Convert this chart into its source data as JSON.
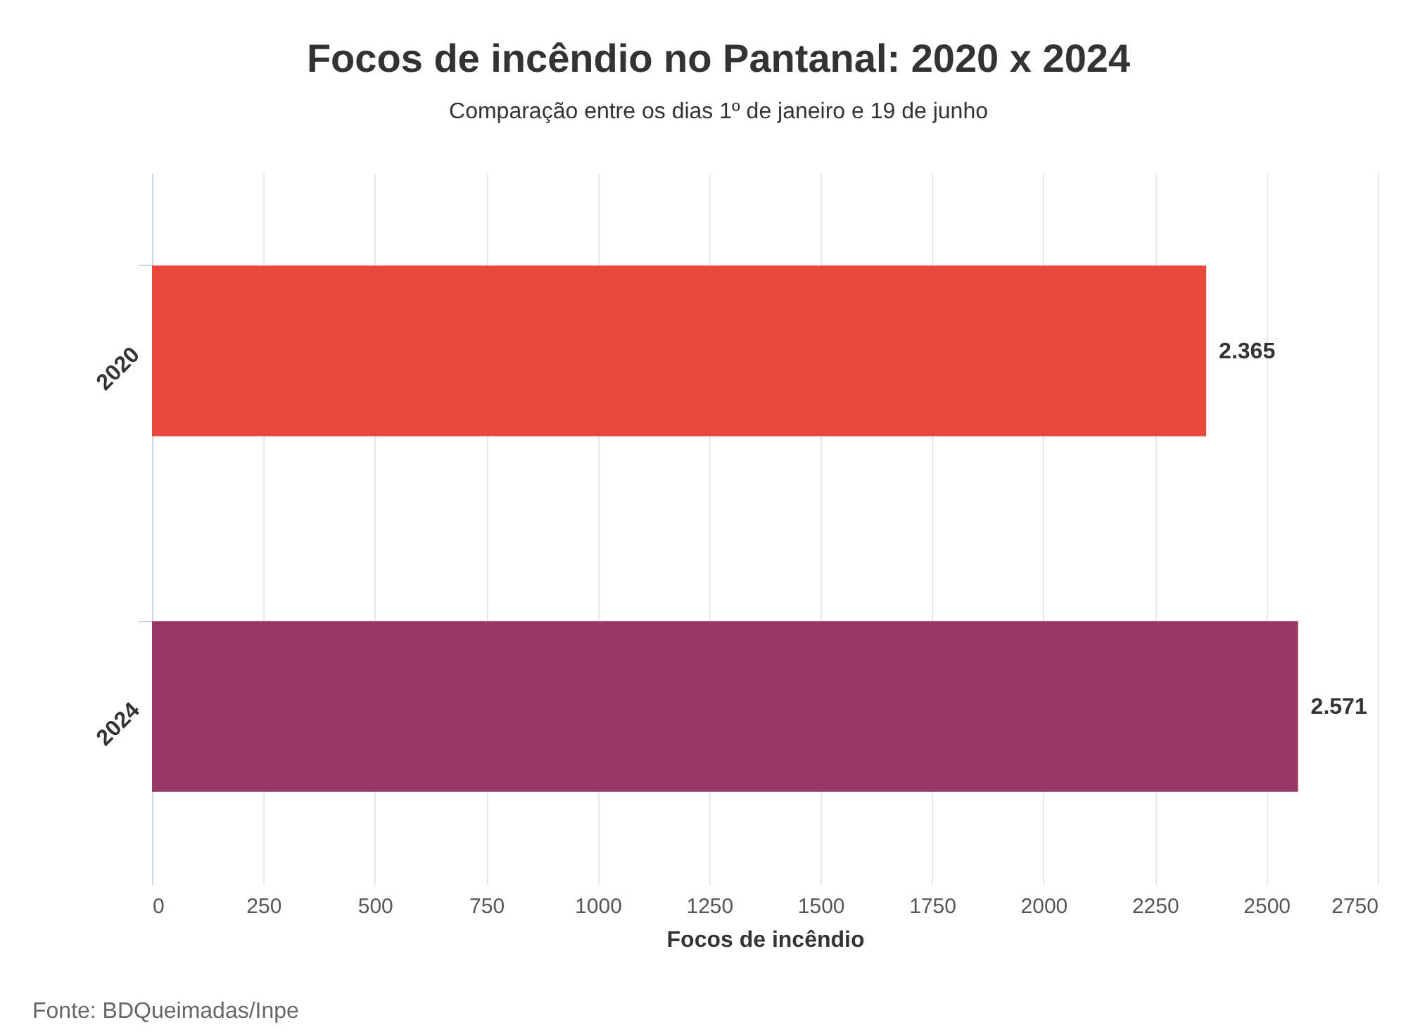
{
  "chart_data": {
    "type": "bar",
    "orientation": "horizontal",
    "title": "Focos de incêndio no Pantanal: 2020 x 2024",
    "subtitle": "Comparação entre os dias 1º de janeiro e 19 de junho",
    "xlabel": "Focos de incêndio",
    "categories": [
      "2020",
      "2024"
    ],
    "values": [
      2365,
      2571
    ],
    "colors": [
      "#e8473e",
      "#993664"
    ],
    "value_labels": [
      "2.365",
      "2.571"
    ],
    "xlim": [
      0,
      2750
    ],
    "xticks": [
      0,
      250,
      500,
      750,
      1000,
      1250,
      1500,
      1750,
      2000,
      2250,
      2500,
      2750
    ],
    "grid": "x",
    "legend": false,
    "annotations": [
      "Fonte: BDQueimadas/Inpe"
    ]
  }
}
